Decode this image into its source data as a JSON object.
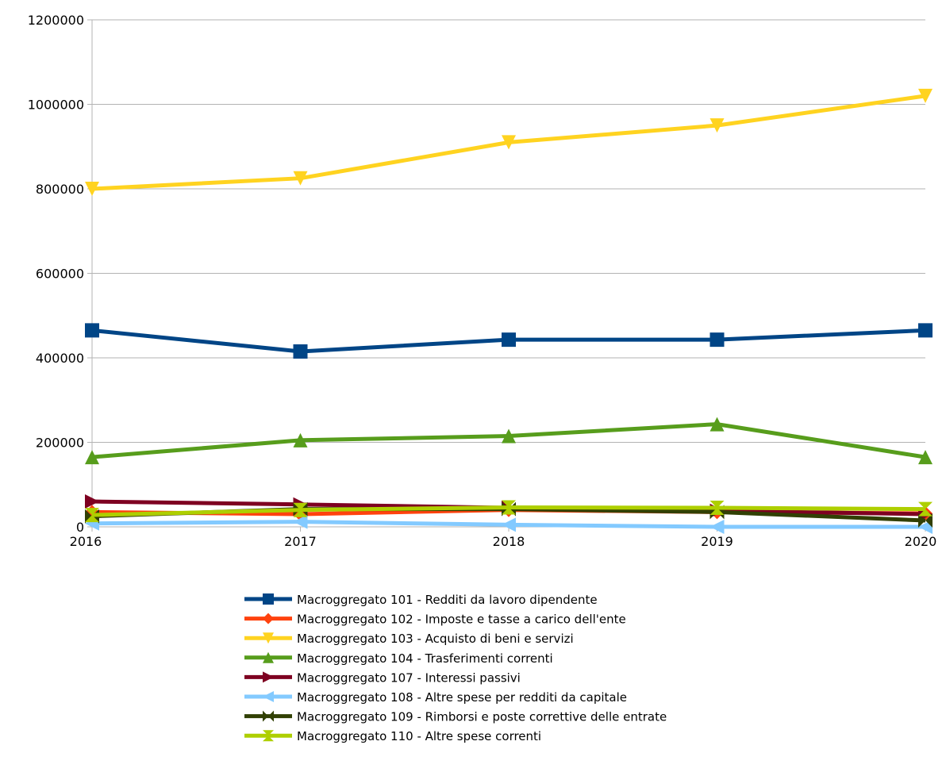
{
  "chart_data": {
    "type": "line",
    "title": "",
    "xlabel": "",
    "ylabel": "",
    "x": [
      "2016",
      "2017",
      "2018",
      "2019",
      "2020"
    ],
    "ylim": [
      0,
      1200000
    ],
    "yticks": [
      "0",
      "200000",
      "400000",
      "600000",
      "800000",
      "1000000",
      "1200000"
    ],
    "grid": "horizontal",
    "legend_position": "bottom",
    "series": [
      {
        "name": "Macroggregato 101 - Redditi da lavoro dipendente",
        "color": "#004586",
        "marker": "square",
        "values": [
          465000,
          415000,
          443000,
          443000,
          465000
        ]
      },
      {
        "name": "Macroggregato 102 - Imposte e tasse a carico dell'ente",
        "color": "#ff420e",
        "marker": "diamond",
        "values": [
          35000,
          30000,
          40000,
          35000,
          32000
        ]
      },
      {
        "name": "Macroggregato 103 - Acquisto di beni e servizi",
        "color": "#ffd320",
        "marker": "triangle-down",
        "values": [
          800000,
          825000,
          910000,
          950000,
          1020000
        ]
      },
      {
        "name": "Macroggregato 104 - Trasferimenti correnti",
        "color": "#579d1c",
        "marker": "triangle-up",
        "values": [
          165000,
          205000,
          215000,
          243000,
          165000
        ]
      },
      {
        "name": "Macroggregato 107 - Interessi passivi",
        "color": "#7e0021",
        "marker": "triangle-right",
        "values": [
          60000,
          53000,
          45000,
          38000,
          30000
        ]
      },
      {
        "name": "Macroggregato 108 - Altre spese per redditi da capitale",
        "color": "#83caff",
        "marker": "triangle-left",
        "values": [
          8000,
          12000,
          5000,
          0,
          0
        ]
      },
      {
        "name": "Macroggregato 109 - Rimborsi e poste correttive delle entrate",
        "color": "#314004",
        "marker": "bowtie",
        "values": [
          25000,
          42000,
          42000,
          35000,
          15000
        ]
      },
      {
        "name": "Macroggregato 110 - Altre spese correnti",
        "color": "#aecf00",
        "marker": "hourglass",
        "values": [
          28000,
          40000,
          46000,
          45000,
          42000
        ]
      }
    ]
  }
}
